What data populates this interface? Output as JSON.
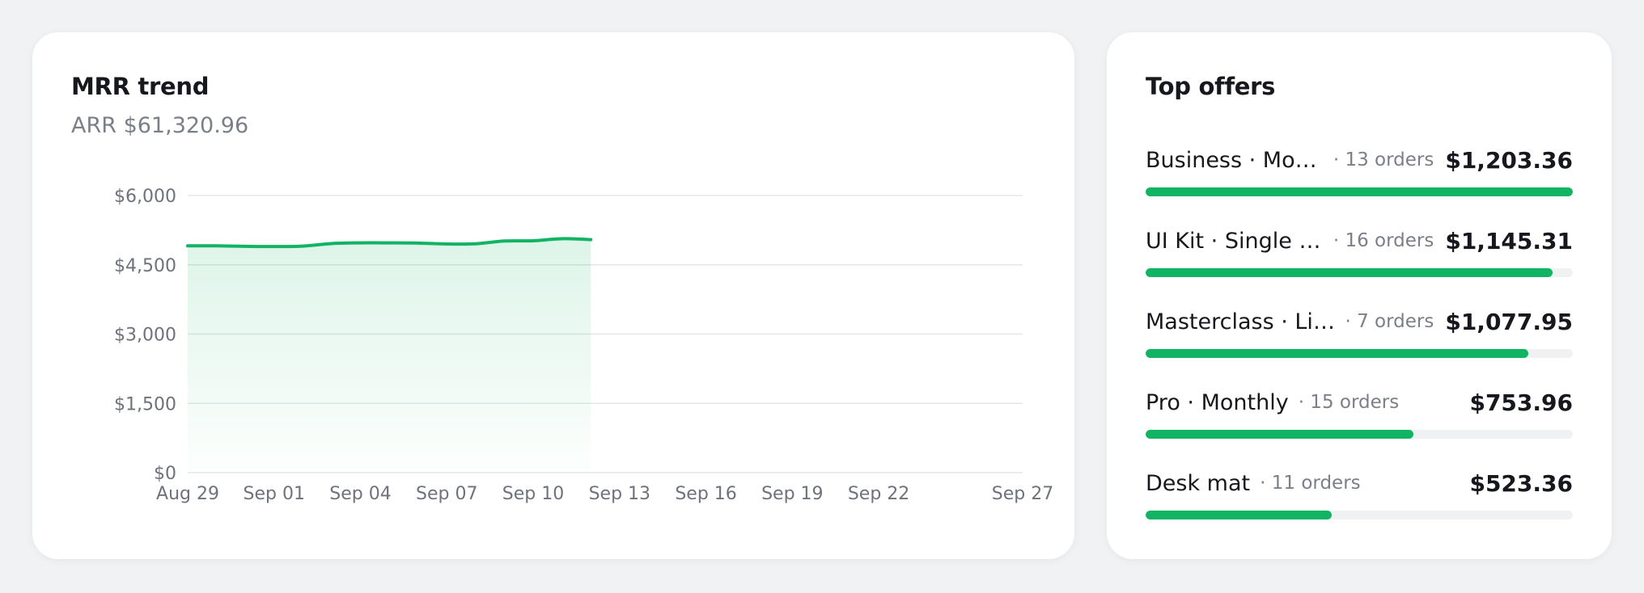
{
  "mrr_card": {
    "title": "MRR trend",
    "subtitle": "ARR $61,320.96"
  },
  "chart_data": {
    "type": "area",
    "title": "MRR trend",
    "xlabel": "",
    "ylabel": "",
    "ylim": [
      0,
      6000
    ],
    "xlim": [
      "2024-08-29",
      "2024-09-27"
    ],
    "y_ticks": [
      {
        "value": 0,
        "label": "$0"
      },
      {
        "value": 1500,
        "label": "$1,500"
      },
      {
        "value": 3000,
        "label": "$3,000"
      },
      {
        "value": 4500,
        "label": "$4,500"
      },
      {
        "value": 6000,
        "label": "$6,000"
      }
    ],
    "x_ticks": [
      {
        "date": "2024-08-29",
        "label": "Aug 29"
      },
      {
        "date": "2024-09-01",
        "label": "Sep 01"
      },
      {
        "date": "2024-09-04",
        "label": "Sep 04"
      },
      {
        "date": "2024-09-07",
        "label": "Sep 07"
      },
      {
        "date": "2024-09-10",
        "label": "Sep 10"
      },
      {
        "date": "2024-09-13",
        "label": "Sep 13"
      },
      {
        "date": "2024-09-16",
        "label": "Sep 16"
      },
      {
        "date": "2024-09-19",
        "label": "Sep 19"
      },
      {
        "date": "2024-09-22",
        "label": "Sep 22"
      },
      {
        "date": "2024-09-27",
        "label": "Sep 27"
      }
    ],
    "grid": true,
    "series": [
      {
        "color": "#10b463",
        "points": [
          {
            "x": "2024-08-29",
            "y": 4910
          },
          {
            "x": "2024-08-30",
            "y": 4910
          },
          {
            "x": "2024-08-31",
            "y": 4900
          },
          {
            "x": "2024-09-01",
            "y": 4895
          },
          {
            "x": "2024-09-02",
            "y": 4905
          },
          {
            "x": "2024-09-03",
            "y": 4960
          },
          {
            "x": "2024-09-04",
            "y": 4975
          },
          {
            "x": "2024-09-05",
            "y": 4975
          },
          {
            "x": "2024-09-06",
            "y": 4970
          },
          {
            "x": "2024-09-07",
            "y": 4950
          },
          {
            "x": "2024-09-08",
            "y": 4955
          },
          {
            "x": "2024-09-09",
            "y": 5015
          },
          {
            "x": "2024-09-10",
            "y": 5020
          },
          {
            "x": "2024-09-11",
            "y": 5065
          },
          {
            "x": "2024-09-12",
            "y": 5045
          }
        ]
      }
    ]
  },
  "offers_card": {
    "title": "Top offers",
    "items": [
      {
        "name": "Business · Mont...",
        "orders": "· 13 orders",
        "value": "$1,203.36",
        "share": 1.0
      },
      {
        "name": "UI Kit · Single lic...",
        "orders": "· 16 orders",
        "value": "$1,145.31",
        "share": 0.952
      },
      {
        "name": "Masterclass · Life...",
        "orders": "· 7 orders",
        "value": "$1,077.95",
        "share": 0.896
      },
      {
        "name": "Pro · Monthly",
        "orders": "· 15 orders",
        "value": "$753.96",
        "share": 0.627
      },
      {
        "name": "Desk mat",
        "orders": "· 11 orders",
        "value": "$523.36",
        "share": 0.435
      }
    ]
  },
  "colors": {
    "accent": "#10b463",
    "track": "#f0f1f3",
    "grid": "#e4e6ea",
    "card": "#ffffff",
    "background": "#f1f2f4"
  }
}
